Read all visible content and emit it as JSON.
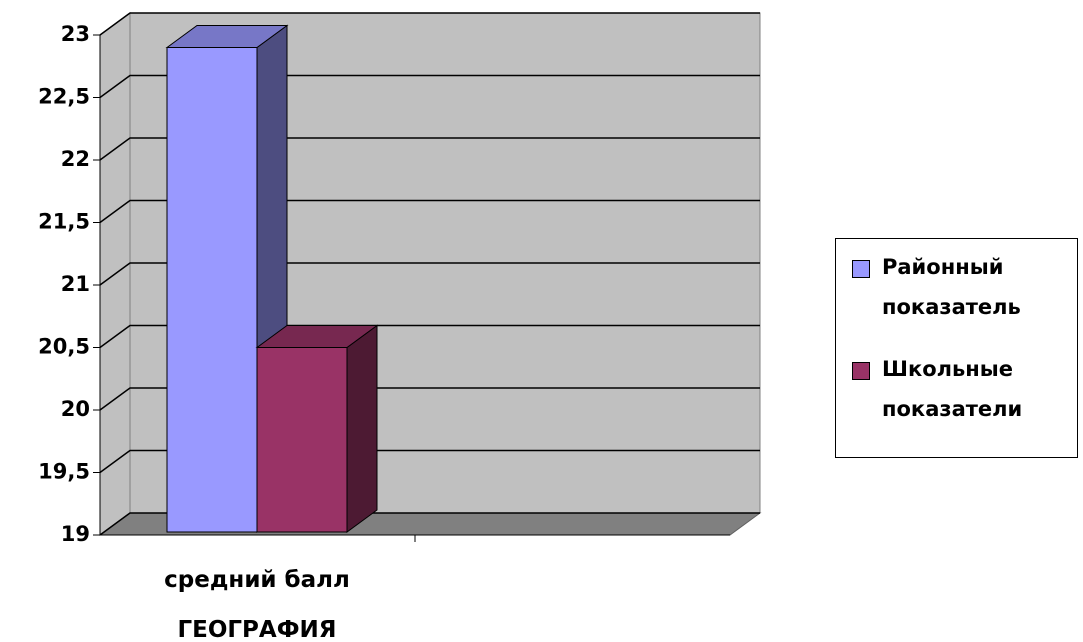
{
  "chart_data": {
    "type": "bar",
    "categories": [
      "средний балл\nГЕОГРАФИЯ"
    ],
    "series": [
      {
        "name": "Районный показатель",
        "color": "#9999ff",
        "values": [
          22.9
        ]
      },
      {
        "name": "Школьные показатели",
        "color": "#993366",
        "values": [
          20.5
        ]
      }
    ],
    "ylim": [
      19,
      23
    ],
    "yticks": [
      19,
      {
        "value": 19.5,
        "label": "19,5"
      },
      20,
      {
        "value": 20.5,
        "label": "20,5"
      },
      21,
      {
        "value": 21.5,
        "label": "21,5"
      },
      22,
      {
        "value": 22.5,
        "label": "22,5"
      },
      23
    ],
    "grid": true,
    "legend": "right"
  }
}
